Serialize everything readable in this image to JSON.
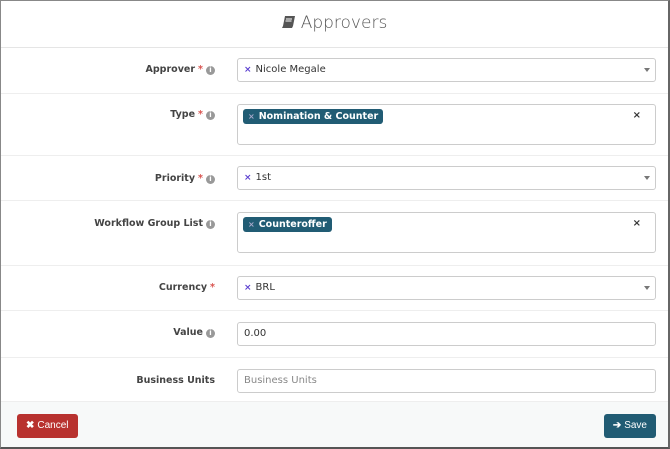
{
  "header": {
    "title": "Approvers",
    "icon": "book-icon"
  },
  "fields": {
    "approver": {
      "label": "Approver",
      "required": "*",
      "value": "Nicole Megale"
    },
    "type": {
      "label": "Type",
      "required": "*",
      "tags": [
        "Nomination & Counter"
      ]
    },
    "priority": {
      "label": "Priority",
      "required": "*",
      "value": "1st"
    },
    "workflow": {
      "label": "Workflow Group List",
      "tags": [
        "Counteroffer"
      ]
    },
    "currency": {
      "label": "Currency",
      "required": "*",
      "value": "BRL"
    },
    "value": {
      "label": "Value",
      "value": "0.00"
    },
    "business_units": {
      "label": "Business Units",
      "placeholder": "Business Units"
    }
  },
  "footer": {
    "cancel_label": "Cancel",
    "save_label": "Save"
  },
  "colors": {
    "primary": "#215c74",
    "danger": "#b8322f",
    "required": "#d9534f"
  }
}
